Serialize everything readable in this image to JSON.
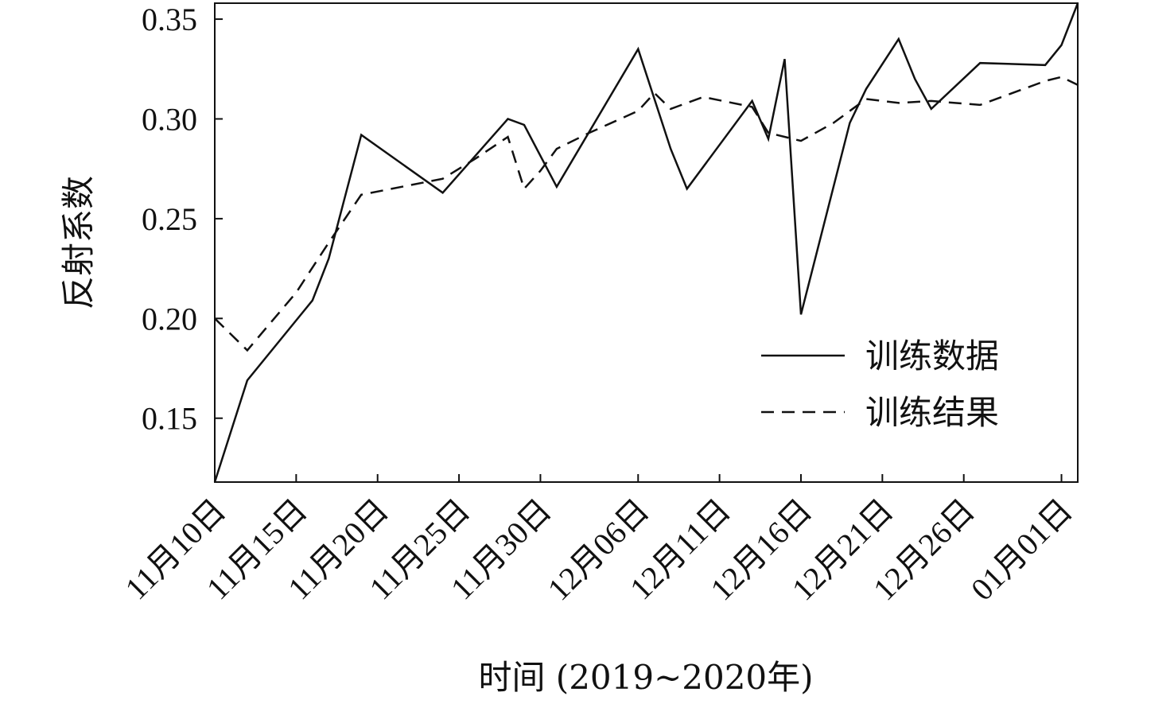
{
  "chart_data": {
    "type": "line",
    "title": "",
    "xlabel": "时间 (2019~2020年)",
    "ylabel": "反射系数",
    "ylim": [
      0.118,
      0.358
    ],
    "yticks": [
      0.15,
      0.2,
      0.25,
      0.3,
      0.35
    ],
    "ytick_labels": [
      "0.15",
      "0.20",
      "0.25",
      "0.30",
      "0.35"
    ],
    "xlim": [
      "2019-11-10",
      "2020-01-02"
    ],
    "xticks": [
      "2019-11-10",
      "2019-11-15",
      "2019-11-20",
      "2019-11-25",
      "2019-11-30",
      "2019-12-06",
      "2019-12-11",
      "2019-12-16",
      "2019-12-21",
      "2019-12-26",
      "2020-01-01"
    ],
    "xtick_labels": [
      "11月10日",
      "11月15日",
      "11月20日",
      "11月25日",
      "11月30日",
      "12月06日",
      "12月11日",
      "12月16日",
      "12月21日",
      "12月26日",
      "01月01日"
    ],
    "grid": false,
    "legend": {
      "position": "right",
      "entries": [
        "训练数据",
        "训练结果"
      ]
    },
    "series": [
      {
        "name": "训练数据",
        "style": "solid",
        "color": "#111111",
        "points": [
          [
            "2019-11-10",
            0.118
          ],
          [
            "2019-11-12",
            0.169
          ],
          [
            "2019-11-16",
            0.209
          ],
          [
            "2019-11-17",
            0.23
          ],
          [
            "2019-11-19",
            0.292
          ],
          [
            "2019-11-24",
            0.263
          ],
          [
            "2019-11-28",
            0.3
          ],
          [
            "2019-11-29",
            0.297
          ],
          [
            "2019-12-01",
            0.266
          ],
          [
            "2019-12-06",
            0.335
          ],
          [
            "2019-12-08",
            0.285
          ],
          [
            "2019-12-09",
            0.265
          ],
          [
            "2019-12-13",
            0.309
          ],
          [
            "2019-12-14",
            0.29
          ],
          [
            "2019-12-15",
            0.33
          ],
          [
            "2019-12-16",
            0.202
          ],
          [
            "2019-12-19",
            0.298
          ],
          [
            "2019-12-20",
            0.315
          ],
          [
            "2019-12-22",
            0.34
          ],
          [
            "2019-12-23",
            0.32
          ],
          [
            "2019-12-24",
            0.305
          ],
          [
            "2019-12-27",
            0.328
          ],
          [
            "2019-12-31",
            0.327
          ],
          [
            "2020-01-01",
            0.337
          ],
          [
            "2020-01-02",
            0.358
          ]
        ]
      },
      {
        "name": "训练结果",
        "style": "dashed",
        "color": "#111111",
        "points": [
          [
            "2019-11-10",
            0.2
          ],
          [
            "2019-11-12",
            0.184
          ],
          [
            "2019-11-15",
            0.213
          ],
          [
            "2019-11-17",
            0.238
          ],
          [
            "2019-11-19",
            0.262
          ],
          [
            "2019-11-24",
            0.27
          ],
          [
            "2019-11-26",
            0.28
          ],
          [
            "2019-11-28",
            0.291
          ],
          [
            "2019-11-29",
            0.265
          ],
          [
            "2019-11-30",
            0.274
          ],
          [
            "2019-12-01",
            0.285
          ],
          [
            "2019-12-03",
            0.293
          ],
          [
            "2019-12-06",
            0.304
          ],
          [
            "2019-12-07",
            0.313
          ],
          [
            "2019-12-08",
            0.305
          ],
          [
            "2019-12-10",
            0.311
          ],
          [
            "2019-12-13",
            0.306
          ],
          [
            "2019-12-14",
            0.293
          ],
          [
            "2019-12-16",
            0.289
          ],
          [
            "2019-12-18",
            0.298
          ],
          [
            "2019-12-20",
            0.31
          ],
          [
            "2019-12-22",
            0.308
          ],
          [
            "2019-12-24",
            0.309
          ],
          [
            "2019-12-27",
            0.307
          ],
          [
            "2019-12-31",
            0.319
          ],
          [
            "2020-01-01",
            0.321
          ],
          [
            "2020-01-02",
            0.317
          ]
        ]
      }
    ]
  }
}
